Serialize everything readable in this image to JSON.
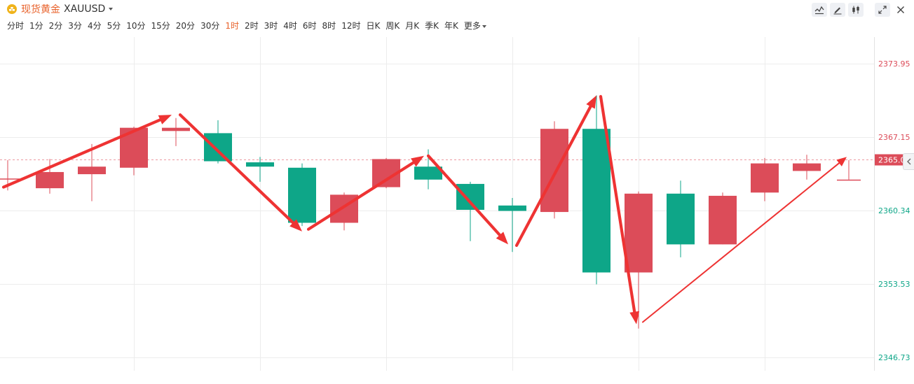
{
  "header": {
    "symbol_name": "现货黄金",
    "symbol_code": "XAUUSD",
    "icons": {
      "symbol": "gold-coin-icon",
      "symbol_dropdown": "caret-down-icon",
      "tools": [
        "indicator-icon",
        "draw-icon",
        "candle-style-icon",
        "fullscreen-icon",
        "close-icon"
      ],
      "side_toggle": "chevron-left-icon"
    }
  },
  "intervals": {
    "items": [
      "分时",
      "1分",
      "2分",
      "3分",
      "4分",
      "5分",
      "10分",
      "15分",
      "20分",
      "30分",
      "1时",
      "2时",
      "3时",
      "4时",
      "6时",
      "8时",
      "12时",
      "日K",
      "周K",
      "月K",
      "季K",
      "年K"
    ],
    "active": "1时",
    "more_label": "更多"
  },
  "colors": {
    "accent": "#e8622b",
    "up": "#dc4c59",
    "down": "#0ea688",
    "grid": "#ececec",
    "last_price_bg": "#dc4c59",
    "arrow": "#ee3333"
  },
  "chart_data": {
    "type": "candlestick",
    "title": "",
    "xlabel": "",
    "ylabel": "",
    "ylim": [
      2345.5,
      2376.4
    ],
    "grid": true,
    "y_ticks": [
      2373.95,
      2367.15,
      2360.34,
      2353.53,
      2346.73
    ],
    "y_tick_labels": [
      "2373.95",
      "2367.15",
      "2360.34",
      "2353.53",
      "2346.73"
    ],
    "last_price": 2365.03,
    "last_price_label": "2365.03",
    "candles": [
      {
        "o": 2363.3,
        "h": 2365.0,
        "l": 2362.2,
        "c": 2363.3
      },
      {
        "o": 2362.4,
        "h": 2365.1,
        "l": 2361.9,
        "c": 2363.9
      },
      {
        "o": 2363.7,
        "h": 2366.5,
        "l": 2361.2,
        "c": 2364.4
      },
      {
        "o": 2364.3,
        "h": 2368.1,
        "l": 2363.6,
        "c": 2368.0
      },
      {
        "o": 2367.7,
        "h": 2368.9,
        "l": 2366.3,
        "c": 2368.0
      },
      {
        "o": 2367.5,
        "h": 2368.7,
        "l": 2364.7,
        "c": 2364.9
      },
      {
        "o": 2364.8,
        "h": 2365.3,
        "l": 2363.0,
        "c": 2364.4
      },
      {
        "o": 2364.3,
        "h": 2364.7,
        "l": 2358.9,
        "c": 2359.2
      },
      {
        "o": 2359.2,
        "h": 2362.0,
        "l": 2358.5,
        "c": 2361.8
      },
      {
        "o": 2362.5,
        "h": 2365.2,
        "l": 2362.4,
        "c": 2365.1
      },
      {
        "o": 2364.4,
        "h": 2366.0,
        "l": 2362.3,
        "c": 2363.2
      },
      {
        "o": 2362.8,
        "h": 2363.0,
        "l": 2357.5,
        "c": 2360.4
      },
      {
        "o": 2360.8,
        "h": 2361.5,
        "l": 2356.5,
        "c": 2360.3
      },
      {
        "o": 2360.2,
        "h": 2368.6,
        "l": 2359.6,
        "c": 2367.9
      },
      {
        "o": 2367.9,
        "h": 2371.0,
        "l": 2353.5,
        "c": 2354.6
      },
      {
        "o": 2354.6,
        "h": 2362.1,
        "l": 2349.4,
        "c": 2361.9
      },
      {
        "o": 2361.9,
        "h": 2363.1,
        "l": 2356.0,
        "c": 2357.2
      },
      {
        "o": 2357.2,
        "h": 2362.0,
        "l": 2357.2,
        "c": 2361.7
      },
      {
        "o": 2362.0,
        "h": 2365.2,
        "l": 2361.2,
        "c": 2364.7
      },
      {
        "o": 2364.0,
        "h": 2365.5,
        "l": 2363.2,
        "c": 2364.7
      },
      {
        "o": 2363.2,
        "h": 2365.0,
        "l": 2363.2,
        "c": 2363.2
      }
    ],
    "trend_arrows": [
      {
        "from": [
          -0.1,
          2362.5
        ],
        "to": [
          3.9,
          2369.2
        ],
        "style": "thick"
      },
      {
        "from": [
          4.1,
          2369.2
        ],
        "to": [
          7.0,
          2358.4
        ],
        "style": "thick"
      },
      {
        "from": [
          7.15,
          2358.6
        ],
        "to": [
          9.9,
          2365.4
        ],
        "style": "thick"
      },
      {
        "from": [
          10.0,
          2365.4
        ],
        "to": [
          11.9,
          2357.2
        ],
        "style": "thick"
      },
      {
        "from": [
          12.1,
          2357.1
        ],
        "to": [
          14.0,
          2371.0
        ],
        "style": "thick"
      },
      {
        "from": [
          14.1,
          2370.9
        ],
        "to": [
          14.95,
          2349.8
        ],
        "style": "thick"
      },
      {
        "from": [
          15.1,
          2350.0
        ],
        "to": [
          19.95,
          2365.3
        ],
        "style": "thin"
      }
    ]
  }
}
